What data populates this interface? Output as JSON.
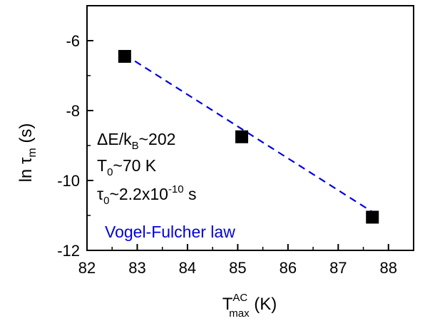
{
  "chart_data": {
    "type": "scatter",
    "title": "",
    "xlabel": {
      "main": "T",
      "sup": "AC",
      "sub": "max",
      "unit": " (K)"
    },
    "ylabel": {
      "main": "ln τ",
      "sub": "m",
      "unit": " (s)"
    },
    "xlim": [
      82,
      88.5
    ],
    "ylim": [
      -12,
      -5
    ],
    "xticks": [
      82,
      83,
      84,
      85,
      86,
      87,
      88
    ],
    "yticks": [
      -12,
      -10,
      -8,
      -6
    ],
    "grid": false,
    "series": [
      {
        "marker": "square",
        "color": "#000000",
        "points": [
          {
            "x": 82.75,
            "y": -6.45
          },
          {
            "x": 85.08,
            "y": -8.75
          },
          {
            "x": 87.68,
            "y": -11.05
          }
        ]
      }
    ],
    "fit_line": {
      "style": "dashed",
      "color": "#0000e0",
      "points": [
        {
          "x": 82.75,
          "y": -6.4
        },
        {
          "x": 87.68,
          "y": -10.9
        }
      ]
    },
    "annotations": {
      "line1": {
        "pre": "ΔE/k",
        "sub": "B",
        "post": "~202"
      },
      "line2": {
        "pre": "T",
        "sub": "0",
        "post": "~70 K"
      },
      "line3": {
        "pre": "τ",
        "sub": "0",
        "mid": "~2.2x10",
        "sup": "-10",
        "post": " s"
      },
      "legend": {
        "text": "Vogel-Fulcher law",
        "color": "#0000e0"
      }
    }
  }
}
